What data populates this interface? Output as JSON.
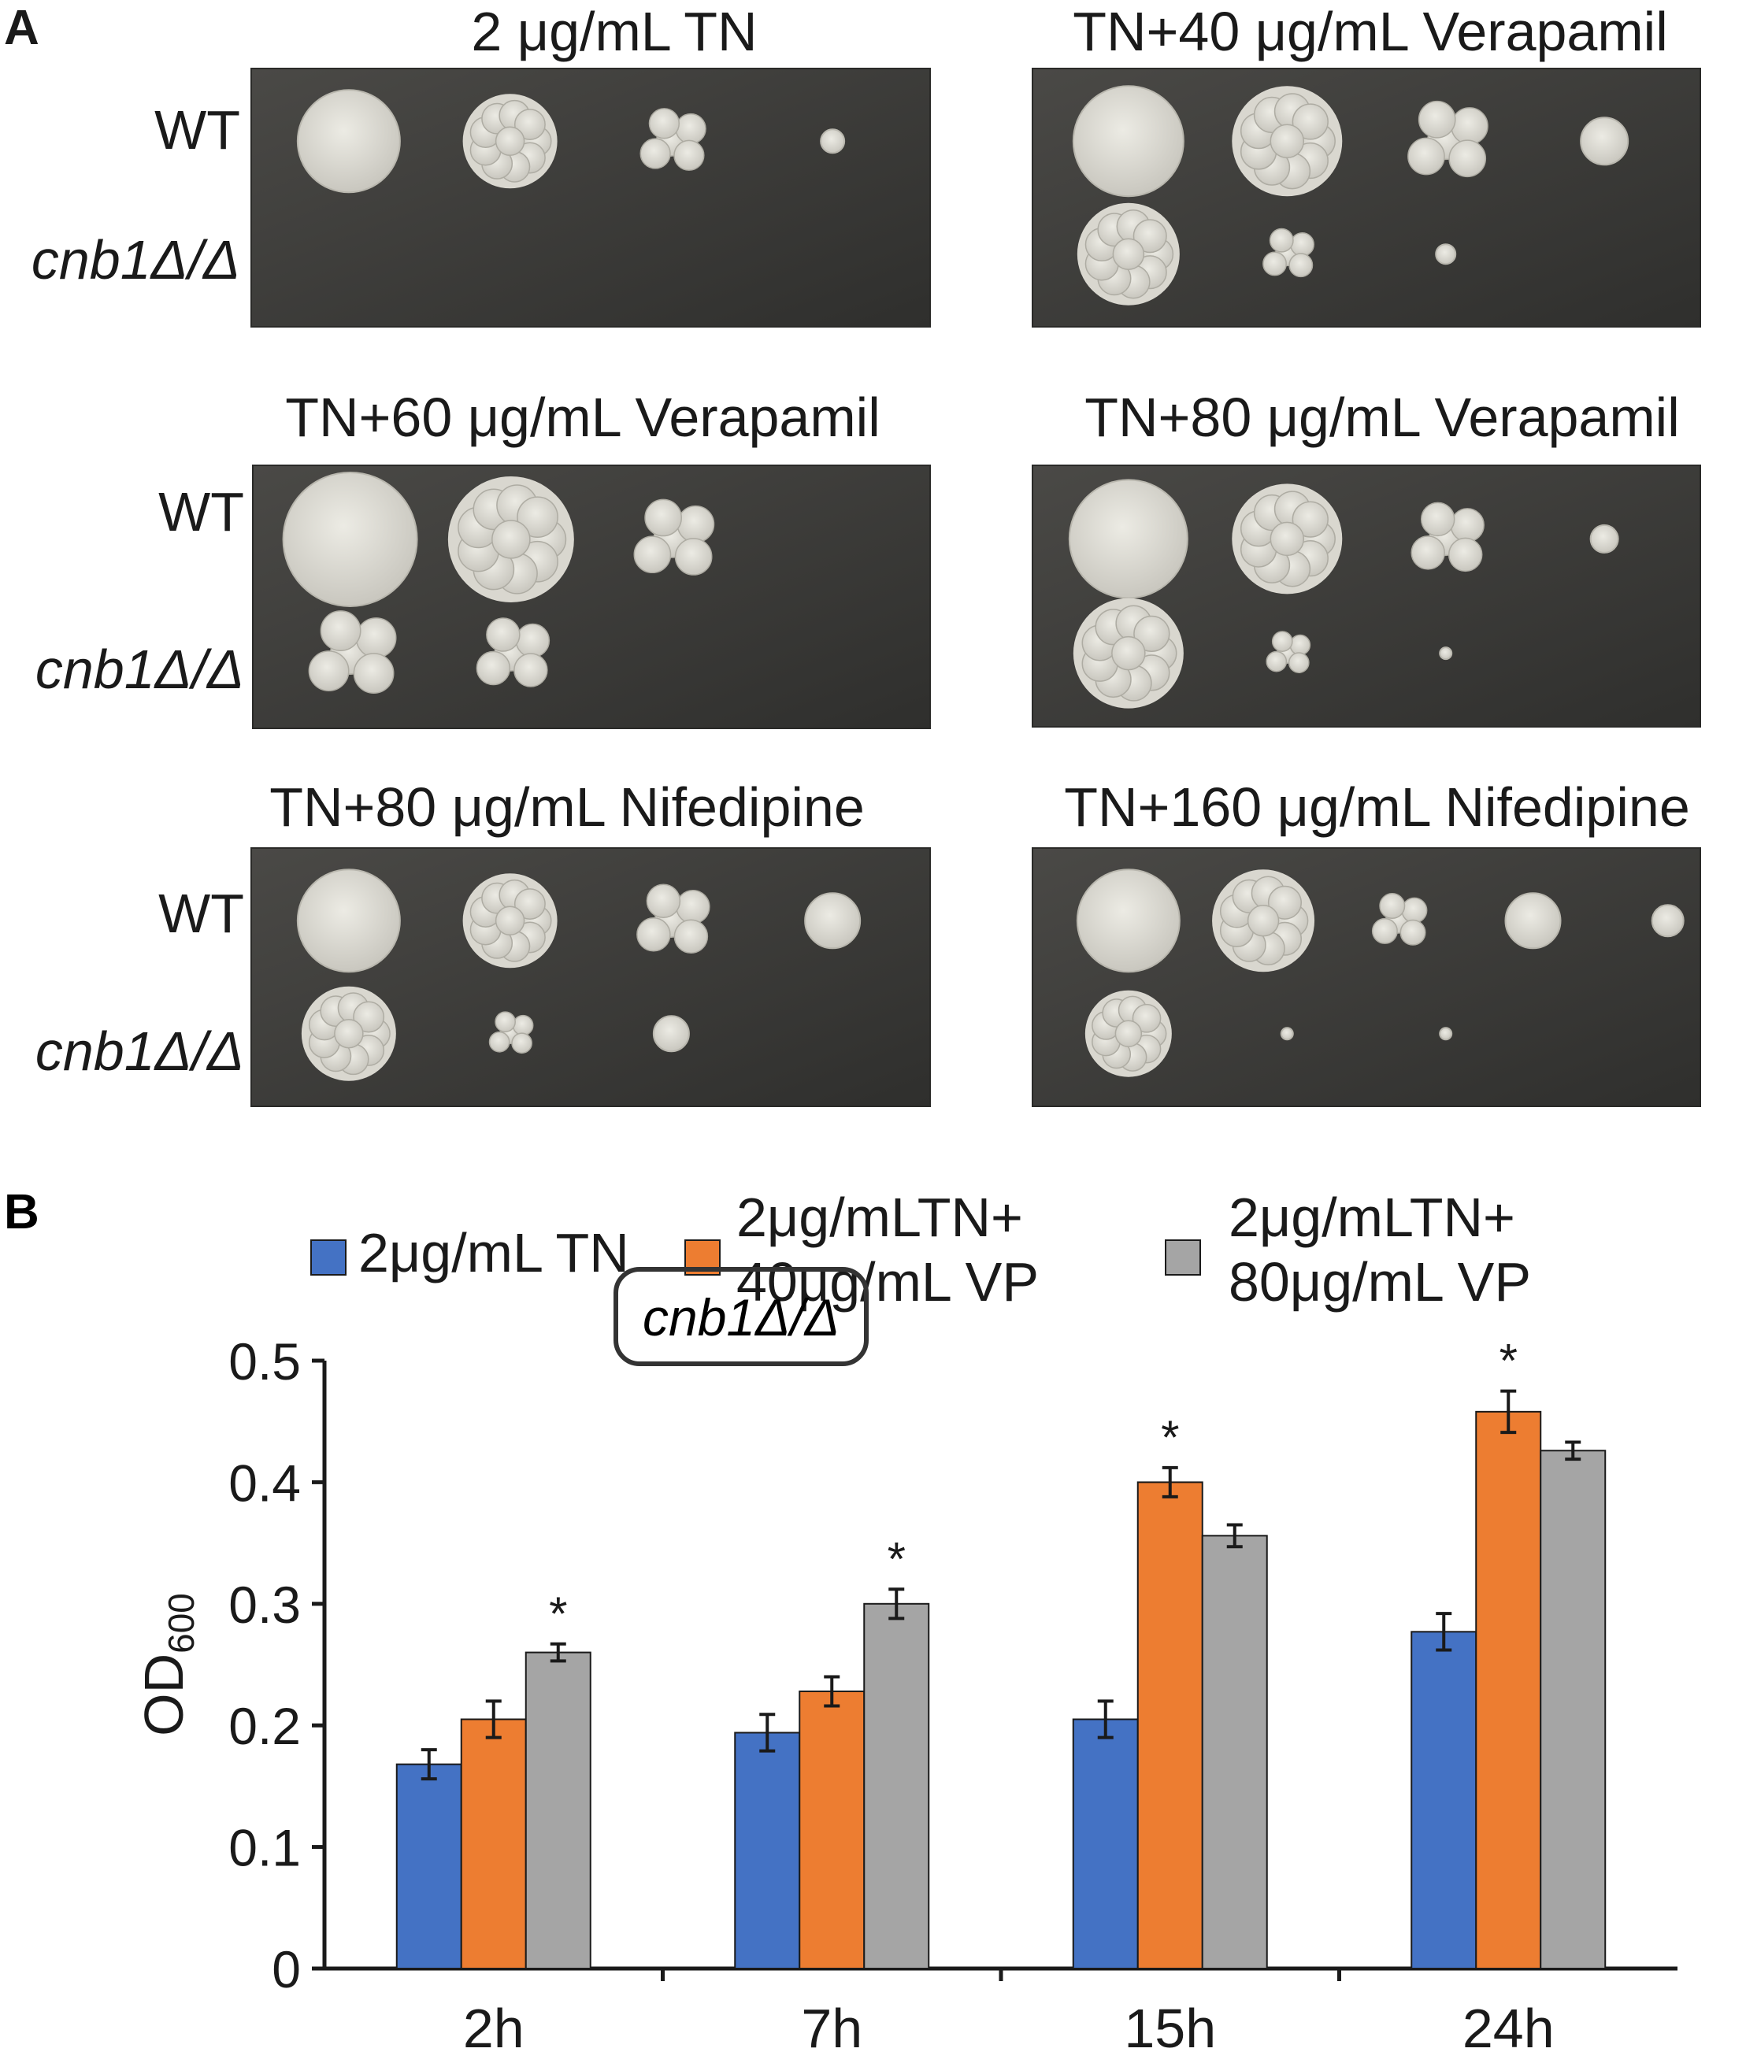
{
  "panelA": {
    "letter": "A",
    "row_labels": {
      "wt": "WT",
      "mutant": "cnb1Δ/Δ"
    },
    "plates": [
      {
        "title": "2 μg/mL TN",
        "wt": [
          {
            "d": 130,
            "c": "smooth"
          },
          {
            "d": 120,
            "c": "wrinkled"
          },
          {
            "d": 90,
            "c": "cluster"
          },
          {
            "d": 30,
            "c": "single"
          }
        ],
        "mut": []
      },
      {
        "title": "TN+40 μg/mL Verapamil",
        "wt": [
          {
            "d": 140,
            "c": "smooth"
          },
          {
            "d": 140,
            "c": "wrinkled"
          },
          {
            "d": 110,
            "c": "cluster"
          },
          {
            "d": 60,
            "c": "single"
          }
        ],
        "mut": [
          {
            "d": 130,
            "c": "wrinkled"
          },
          {
            "d": 70,
            "c": "cluster"
          },
          {
            "d": 25,
            "c": "single"
          }
        ]
      },
      {
        "title": "TN+60 μg/mL Verapamil",
        "wt": [
          {
            "d": 170,
            "c": "smooth"
          },
          {
            "d": 160,
            "c": "wrinkled"
          },
          {
            "d": 110,
            "c": "cluster"
          }
        ],
        "mut": [
          {
            "d": 120,
            "c": "cluster"
          },
          {
            "d": 100,
            "c": "cluster"
          }
        ]
      },
      {
        "title": "TN+80 μg/mL Verapamil",
        "wt": [
          {
            "d": 150,
            "c": "smooth"
          },
          {
            "d": 140,
            "c": "wrinkled"
          },
          {
            "d": 100,
            "c": "cluster"
          },
          {
            "d": 35,
            "c": "single"
          }
        ],
        "mut": [
          {
            "d": 140,
            "c": "wrinkled"
          },
          {
            "d": 60,
            "c": "cluster"
          },
          {
            "d": 15,
            "c": "single"
          }
        ]
      },
      {
        "title": "TN+80 μg/mL Nifedipine",
        "wt": [
          {
            "d": 130,
            "c": "smooth"
          },
          {
            "d": 120,
            "c": "wrinkled"
          },
          {
            "d": 100,
            "c": "cluster"
          },
          {
            "d": 70,
            "c": "single"
          }
        ],
        "mut": [
          {
            "d": 120,
            "c": "wrinkled"
          },
          {
            "d": 60,
            "c": "cluster"
          },
          {
            "d": 45,
            "c": "single"
          }
        ]
      },
      {
        "title": "TN+160 μg/mL Nifedipine",
        "wt": [
          {
            "d": 130,
            "c": "smooth"
          },
          {
            "d": 130,
            "c": "wrinkled"
          },
          {
            "d": 75,
            "c": "cluster"
          },
          {
            "d": 70,
            "c": "single"
          },
          {
            "d": 40,
            "c": "single"
          }
        ],
        "mut": [
          {
            "d": 110,
            "c": "wrinkled"
          },
          {
            "d": 15,
            "c": "single"
          },
          {
            "d": 15,
            "c": "single"
          }
        ]
      }
    ]
  },
  "panelB": {
    "letter": "B",
    "inset_label": "cnb1Δ/Δ",
    "colors": {
      "blue": "#4472c4",
      "orange": "#ed7d31",
      "gray": "#a5a5a5",
      "axis": "#1a1a1a"
    },
    "chart_data": {
      "type": "bar",
      "categories": [
        "2h",
        "7h",
        "15h",
        "24h"
      ],
      "series": [
        {
          "name": "2μg/mL TN",
          "color": "#4472c4",
          "values": [
            0.168,
            0.194,
            0.205,
            0.277
          ],
          "errors": [
            0.012,
            0.015,
            0.015,
            0.015
          ]
        },
        {
          "name": "2μg/mLTN+\n40μg/mL VP",
          "color": "#ed7d31",
          "values": [
            0.205,
            0.228,
            0.4,
            0.458
          ],
          "errors": [
            0.015,
            0.012,
            0.012,
            0.017
          ]
        },
        {
          "name": "2μg/mLTN+\n80μg/mL VP",
          "color": "#a5a5a5",
          "values": [
            0.26,
            0.3,
            0.356,
            0.426
          ],
          "errors": [
            0.007,
            0.012,
            0.009,
            0.007
          ]
        }
      ],
      "significance": [
        {
          "category": "2h",
          "series": 2,
          "text": "*"
        },
        {
          "category": "7h",
          "series": 2,
          "text": "*"
        },
        {
          "category": "15h",
          "series": 1,
          "text": "*"
        },
        {
          "category": "24h",
          "series": 1,
          "text": "*"
        }
      ],
      "ylabel": "OD600",
      "ylabel_main": "OD",
      "ylabel_sub": "600",
      "xlabel": "",
      "ylim": [
        0,
        0.5
      ],
      "yticks": [
        "0",
        "0.1",
        "0.2",
        "0.3",
        "0.4",
        "0.5"
      ],
      "grid": false,
      "legend": "top"
    }
  }
}
